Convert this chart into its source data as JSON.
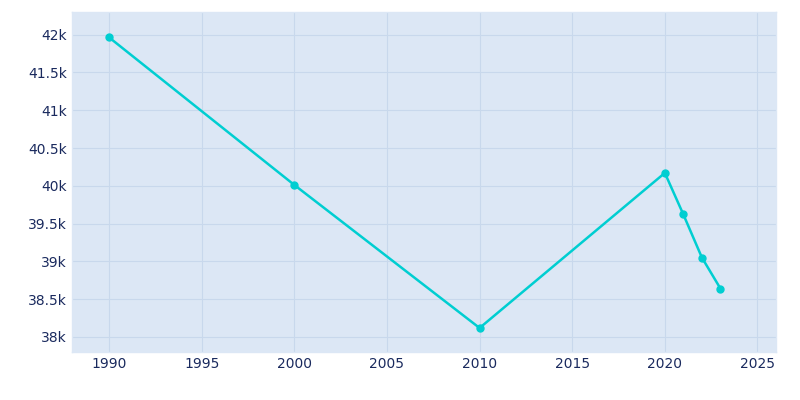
{
  "years": [
    1990,
    2000,
    2010,
    2020,
    2021,
    2022,
    2023
  ],
  "population": [
    41964,
    40011,
    38118,
    40170,
    39620,
    39050,
    38640
  ],
  "line_color": "#00CED1",
  "bg_color": "#dce7f5",
  "fig_bg_color": "#ffffff",
  "text_color": "#1a2a5e",
  "xlim": [
    1988,
    2026
  ],
  "ylim": [
    37800,
    42300
  ],
  "xticks": [
    1990,
    1995,
    2000,
    2005,
    2010,
    2015,
    2020,
    2025
  ],
  "ytick_values": [
    38000,
    38500,
    39000,
    39500,
    40000,
    40500,
    41000,
    41500,
    42000
  ],
  "ytick_labels": [
    "38k",
    "38.5k",
    "39k",
    "39.5k",
    "40k",
    "40.5k",
    "41k",
    "41.5k",
    "42k"
  ],
  "linewidth": 1.8,
  "marker_size": 5,
  "grid_color": "#c8d8ec",
  "grid_linewidth": 0.8
}
